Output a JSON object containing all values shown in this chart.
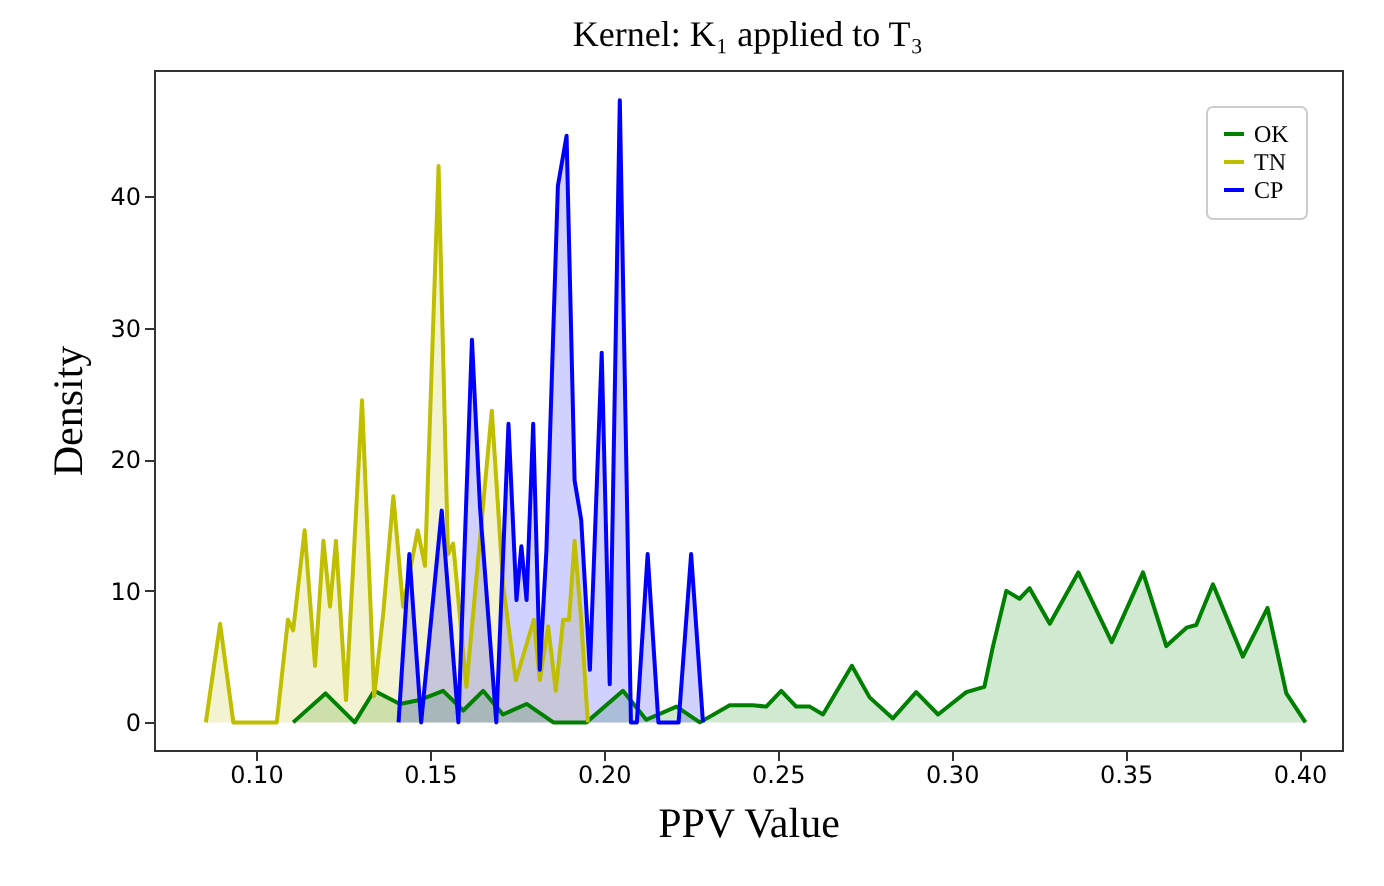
{
  "chart_data": {
    "type": "area",
    "title": "Kernel: K₁ applied to T₃",
    "xlabel": "PPV Value",
    "ylabel": "Density",
    "xlim": [
      0.0707,
      0.4122
    ],
    "ylim": [
      -2.1,
      49.6
    ],
    "xticks": [
      {
        "value": 0.1,
        "label": "0.10"
      },
      {
        "value": 0.15,
        "label": "0.15"
      },
      {
        "value": 0.2,
        "label": "0.20"
      },
      {
        "value": 0.25,
        "label": "0.25"
      },
      {
        "value": 0.3,
        "label": "0.30"
      },
      {
        "value": 0.35,
        "label": "0.35"
      },
      {
        "value": 0.4,
        "label": "0.40"
      }
    ],
    "yticks": [
      0,
      10,
      20,
      30,
      40
    ],
    "grid": false,
    "legend": "top right",
    "line_style": "solid",
    "marker": "none",
    "series": [
      {
        "name": "OK",
        "color": "#008000",
        "x": [
          0.1107,
          0.12,
          0.1284,
          0.134,
          0.1414,
          0.147,
          0.1538,
          0.1596,
          0.1653,
          0.171,
          0.1778,
          0.1855,
          0.195,
          0.2055,
          0.2122,
          0.2209,
          0.2276,
          0.2362,
          0.2429,
          0.2467,
          0.251,
          0.2553,
          0.2592,
          0.263,
          0.2713,
          0.2764,
          0.2831,
          0.2898,
          0.2961,
          0.3042,
          0.3094,
          0.3118,
          0.3157,
          0.3195,
          0.3224,
          0.3282,
          0.3364,
          0.346,
          0.355,
          0.3617,
          0.3675,
          0.3703,
          0.3751,
          0.3837,
          0.3908,
          0.3962,
          0.4017
        ],
        "values": [
          0,
          2.2,
          0,
          2.4,
          1.4,
          1.7,
          2.4,
          0.9,
          2.4,
          0.6,
          1.4,
          0,
          0,
          2.4,
          0.2,
          1.2,
          0,
          1.3,
          1.3,
          1.2,
          2.4,
          1.2,
          1.2,
          0.6,
          4.3,
          1.9,
          0.3,
          2.3,
          0.6,
          2.3,
          2.7,
          5.7,
          10,
          9.4,
          10.2,
          7.5,
          11.4,
          6.1,
          11.4,
          5.8,
          7.2,
          7.4,
          10.5,
          5,
          8.7,
          2.2,
          0
        ]
      },
      {
        "name": "TN",
        "color": "#bfbf00",
        "x": [
          0.0856,
          0.0897,
          0.0935,
          0.106,
          0.1092,
          0.1107,
          0.114,
          0.117,
          0.1194,
          0.1213,
          0.123,
          0.1259,
          0.1305,
          0.134,
          0.1366,
          0.1395,
          0.1423,
          0.1465,
          0.1486,
          0.1525,
          0.1552,
          0.1567,
          0.1605,
          0.1678,
          0.1711,
          0.1747,
          0.1799,
          0.1816,
          0.184,
          0.1862,
          0.1883,
          0.19,
          0.1916,
          0.1935,
          0.1954
        ],
        "values": [
          0,
          7.5,
          0,
          0,
          7.8,
          7,
          14.6,
          4.3,
          13.8,
          8.8,
          13.8,
          1.7,
          24.5,
          2,
          8.3,
          17.2,
          8.8,
          14.6,
          11.9,
          42.3,
          12.8,
          13.6,
          2.7,
          23.7,
          10.3,
          3.2,
          7.8,
          3.2,
          7.3,
          2.4,
          7.8,
          7.8,
          13.8,
          7.8,
          0
        ]
      },
      {
        "name": "CP",
        "color": "#0000ff",
        "x": [
          0.141,
          0.1441,
          0.1475,
          0.1534,
          0.1582,
          0.1621,
          0.1644,
          0.1691,
          0.1726,
          0.1749,
          0.1763,
          0.1778,
          0.1797,
          0.1816,
          0.1835,
          0.1868,
          0.1893,
          0.1916,
          0.1935,
          0.196,
          0.1994,
          0.2017,
          0.2046,
          0.2078,
          0.2095,
          0.2126,
          0.2157,
          0.2215,
          0.2251,
          0.2285
        ],
        "values": [
          0,
          12.8,
          0,
          16.1,
          0,
          29.1,
          16.4,
          0,
          22.7,
          9.3,
          13.4,
          9.3,
          22.7,
          4,
          13.1,
          40.8,
          44.6,
          18.4,
          15.4,
          4,
          28.1,
          2.9,
          47.3,
          0,
          0,
          12.8,
          0,
          0,
          12.8,
          0
        ]
      }
    ]
  }
}
